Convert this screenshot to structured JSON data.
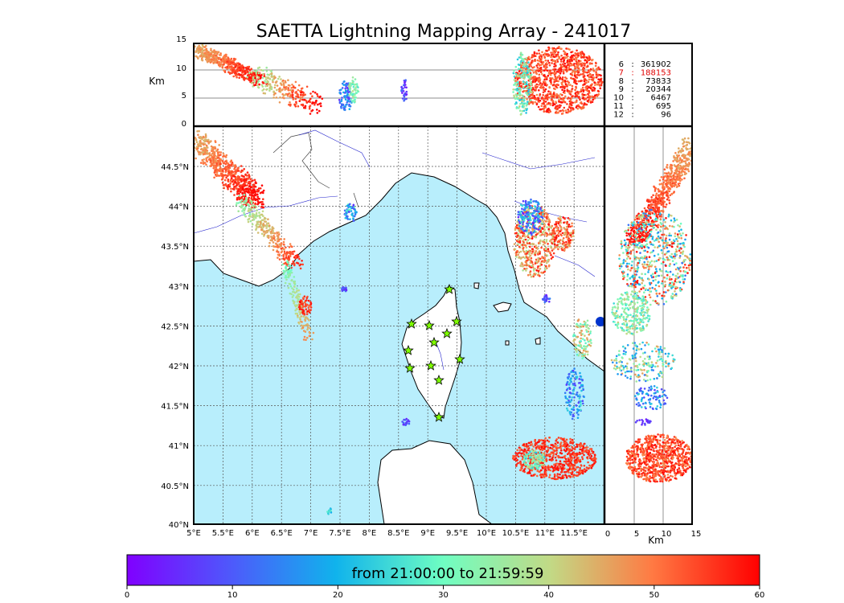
{
  "title": "SAETTA Lightning Mapping Array - 241017",
  "top_panel": {
    "y_unit": "Km",
    "y_ticks": [
      "15",
      "10",
      "5",
      "0"
    ]
  },
  "side_panel": {
    "x_unit": "Km",
    "x_ticks": [
      "0",
      "5",
      "10",
      "15"
    ]
  },
  "map": {
    "lon_ticks": [
      "5°E",
      "5.5°E",
      "6°E",
      "6.5°E",
      "7°E",
      "7.5°E",
      "8°E",
      "8.5°E",
      "9°E",
      "9.5°E",
      "10°E",
      "10.5°E",
      "11°E",
      "11.5°E"
    ],
    "lat_ticks": [
      "44.5°N",
      "44°N",
      "43.5°N",
      "43°N",
      "42.5°N",
      "42°N",
      "41.5°N",
      "41°N",
      "40.5°N",
      "40°N"
    ],
    "sea_color": "#b8eefc",
    "land_color": "#ffffff",
    "station_marker": "star",
    "station_color": "#7fff00"
  },
  "station_counts": [
    {
      "station": "6",
      "sep": ":",
      "count": "361902",
      "color": "#000000"
    },
    {
      "station": "7",
      "sep": ":",
      "count": "188153",
      "color": "#e00000"
    },
    {
      "station": "8",
      "sep": ":",
      "count": "73833",
      "color": "#000000"
    },
    {
      "station": "9",
      "sep": ":",
      "count": "20344",
      "color": "#000000"
    },
    {
      "station": "10",
      "sep": ":",
      "count": "6467",
      "color": "#000000"
    },
    {
      "station": "11",
      "sep": ":",
      "count": "695",
      "color": "#000000"
    },
    {
      "station": "12",
      "sep": ":",
      "count": "96",
      "color": "#000000"
    }
  ],
  "colorbar": {
    "label": "from 21:00:00 to 21:59:59",
    "ticks": [
      "0",
      "10",
      "20",
      "30",
      "40",
      "50",
      "60"
    ],
    "colormap": "rainbow"
  }
}
